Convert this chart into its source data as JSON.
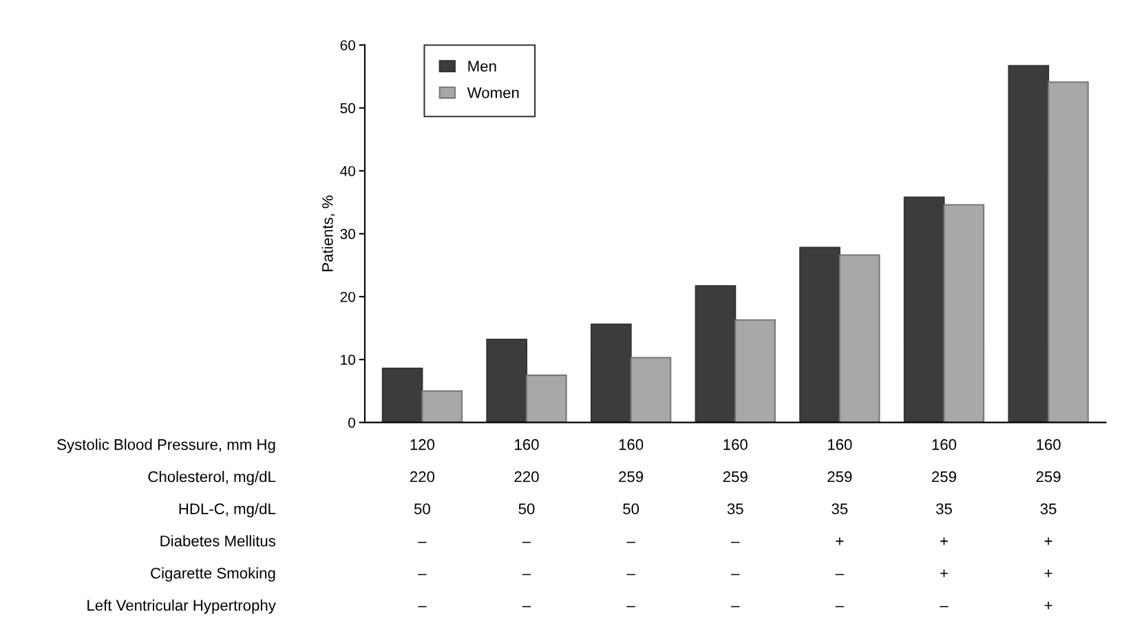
{
  "chart_data": {
    "type": "bar",
    "ylabel": "Patients, %",
    "categories": [
      "120\n220\n50\n–\n–\n–",
      "160\n220\n50\n–\n–\n–",
      "160\n259\n50\n–\n–\n–",
      "160\n259\n35\n–\n–\n–",
      "160\n259\n35\n+\n–\n–",
      "160\n259\n35\n+\n+\n–",
      "160\n259\n35\n+\n+\n+"
    ],
    "series": [
      {
        "name": "Men",
        "color": "#3c3c3c",
        "values": [
          8.6,
          13.2,
          15.6,
          21.7,
          27.8,
          35.8,
          56.7
        ]
      },
      {
        "name": "Women",
        "color": "#a8a8a8",
        "values": [
          5.0,
          7.5,
          10.3,
          16.3,
          26.6,
          34.6,
          54.1
        ]
      }
    ],
    "ylim": [
      0,
      60
    ],
    "yticks": [
      0,
      10,
      20,
      30,
      40,
      50,
      60
    ],
    "grid": false,
    "legend": "top left",
    "annotations": [
      "Systolic Blood Pressure, mm Hg",
      "Cholesterol, mg/dL",
      "HDL-C, mg/dL",
      "Diabetes Mellitus",
      "Cigarette Smoking",
      "Left Ventricular Hypertrophy"
    ]
  }
}
